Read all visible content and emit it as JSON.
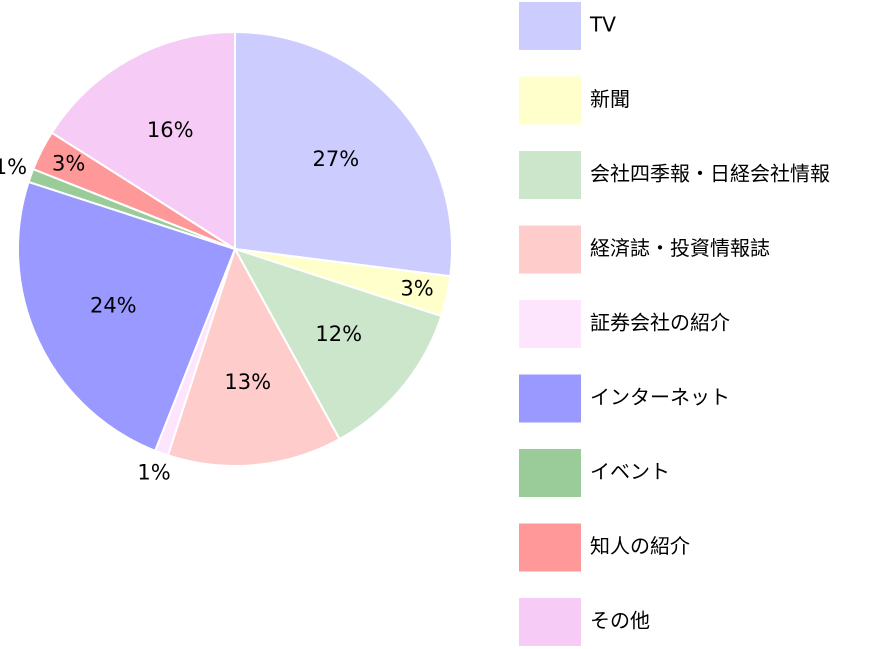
{
  "chart_data": {
    "type": "pie",
    "title": "",
    "legend_position": "right",
    "slices": [
      {
        "label": "TV",
        "value": 27,
        "value_label": "27%",
        "color": "#ccccff"
      },
      {
        "label": "新聞",
        "value": 3,
        "value_label": "3%",
        "color": "#ffffcc"
      },
      {
        "label": "会社四季報・日経会社情報",
        "value": 12,
        "value_label": "12%",
        "color": "#cce6cc"
      },
      {
        "label": "経済誌・投資情報誌",
        "value": 13,
        "value_label": "13%",
        "color": "#ffcccc"
      },
      {
        "label": "証券会社の紹介",
        "value": 1,
        "value_label": "1%",
        "color": "#fde6fd"
      },
      {
        "label": "インターネット",
        "value": 24,
        "value_label": "24%",
        "color": "#9999ff"
      },
      {
        "label": "イベント",
        "value": 1,
        "value_label": "1%",
        "color": "#99cc99"
      },
      {
        "label": "知人の紹介",
        "value": 3,
        "value_label": "3%",
        "color": "#ff9999"
      },
      {
        "label": "その他",
        "value": 16,
        "value_label": "16%",
        "color": "#f6ccf6"
      }
    ]
  }
}
